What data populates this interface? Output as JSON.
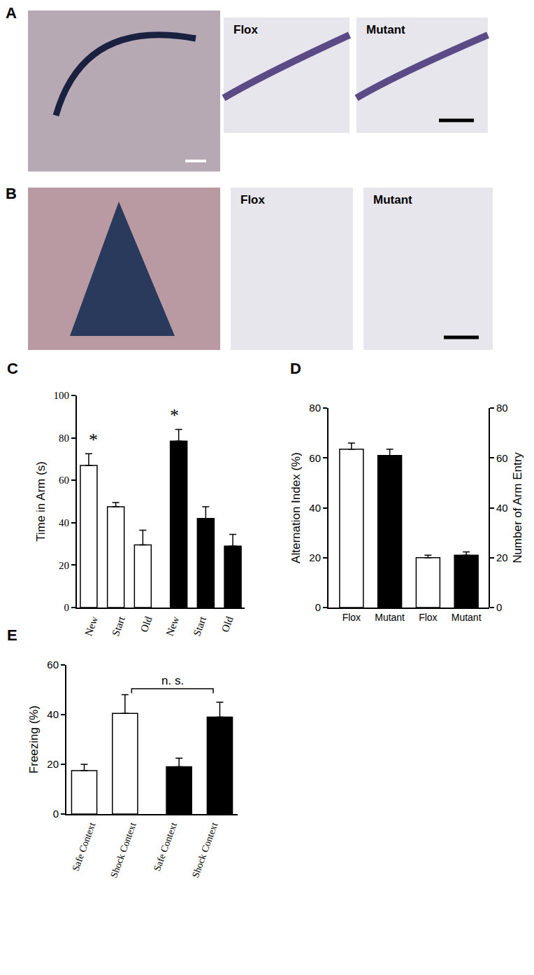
{
  "panels": [
    {
      "panel": "A",
      "images": [
        "Flox",
        "Mutant"
      ]
    },
    {
      "panel": "B",
      "images": [
        "Flox",
        "Mutant"
      ]
    }
  ],
  "chart_data": [
    {
      "panel": "C",
      "type": "bar",
      "categories": [
        "New",
        "Start",
        "Old",
        "New",
        "Start",
        "Old"
      ],
      "series": [
        {
          "color": "#ffffff",
          "values": [
            67,
            47.5,
            29.5,
            null,
            null,
            null
          ],
          "errors": [
            5.5,
            2,
            7,
            null,
            null,
            null
          ]
        },
        {
          "color": "#000000",
          "values": [
            null,
            null,
            null,
            78.5,
            42,
            29
          ],
          "errors": [
            null,
            null,
            null,
            5.5,
            5.5,
            5.5
          ]
        }
      ],
      "y_label": "Time in Arm (s)",
      "ylim": [
        0,
        100
      ],
      "yticks": [
        0,
        20,
        40,
        60,
        80,
        100
      ],
      "annotations": [
        {
          "text": "*",
          "category": 0
        },
        {
          "text": "*",
          "category": 3
        }
      ],
      "grid": false
    },
    {
      "panel": "D",
      "type": "bar",
      "categories": [
        "Flox",
        "Mutant",
        "Flox",
        "Mutant"
      ],
      "series": [
        {
          "colors": [
            "#ffffff",
            "#000000",
            "#ffffff",
            "#000000"
          ],
          "values": [
            63.5,
            61,
            null,
            null
          ],
          "errors": [
            2.5,
            2.5,
            null,
            null
          ]
        },
        {
          "colors": [
            "#ffffff",
            "#000000",
            "#ffffff",
            "#000000"
          ],
          "values": [
            null,
            null,
            20,
            21
          ],
          "errors": [
            null,
            null,
            1,
            1.3
          ],
          "axis": "y2"
        }
      ],
      "y_label": "Alternation Index (%)",
      "ylim": [
        0,
        80
      ],
      "yticks": [
        0,
        20,
        40,
        60,
        80
      ],
      "y2_label": "Number of Arm Entry",
      "y2lim": [
        0,
        80
      ],
      "y2ticks": [
        0,
        20,
        40,
        60,
        80
      ],
      "grid": false
    },
    {
      "panel": "E",
      "type": "bar",
      "categories": [
        "Safe Context",
        "Shock Context",
        "Safe Context",
        "Shock Context"
      ],
      "series": [
        {
          "color": "#ffffff",
          "values": [
            17.5,
            40.5,
            null,
            null
          ],
          "errors": [
            2.5,
            7.5,
            null,
            null
          ]
        },
        {
          "color": "#000000",
          "values": [
            null,
            null,
            19,
            39
          ],
          "errors": [
            null,
            null,
            3.5,
            6
          ]
        }
      ],
      "y_label": "Freezing (%)",
      "ylim": [
        0,
        60
      ],
      "yticks": [
        0,
        20,
        40,
        60
      ],
      "annotations": [
        {
          "text": "n. s.",
          "from": 1,
          "to": 3
        }
      ],
      "grid": false
    }
  ]
}
